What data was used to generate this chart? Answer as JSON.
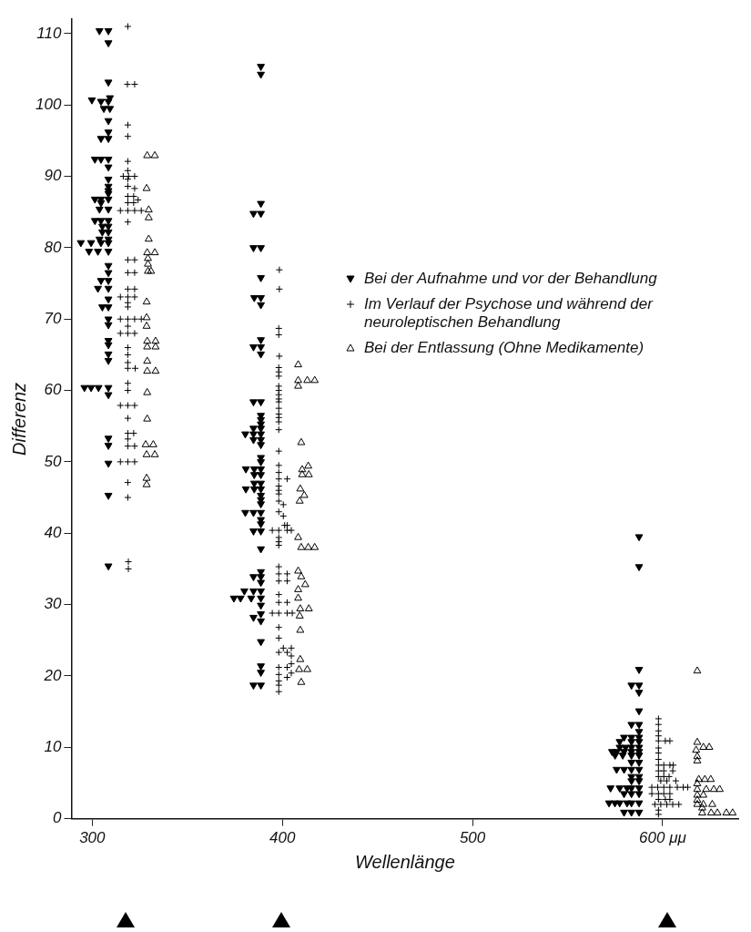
{
  "chart_data": {
    "type": "scatter",
    "xlabel": "Wellenlänge",
    "ylabel": "Differenz",
    "xlim": [
      289,
      640
    ],
    "xticks": [
      300,
      400,
      500,
      {
        "value": 600,
        "label": "600 μμ"
      }
    ],
    "ylim": [
      0,
      112
    ],
    "yticks": [
      0,
      10,
      20,
      30,
      40,
      50,
      60,
      70,
      80,
      90,
      100,
      110
    ],
    "grid": false,
    "legend": "right",
    "series": [
      {
        "name": "Bei der Aufnahme und vor der Behandlung",
        "color": "#000000",
        "marker": "triangle-down",
        "x": [
          303.8,
          308.5,
          308.5,
          308.5,
          299.8,
          304.6,
          308.5,
          309.3,
          306.1,
          309.3,
          308.5,
          308.5,
          304.6,
          308.5,
          301.4,
          304.6,
          308.5,
          308.5,
          308.5,
          308.5,
          308.5,
          308.5,
          301.4,
          304.6,
          308.5,
          304.6,
          303.8,
          308.5,
          301.4,
          304.6,
          308.5,
          305.3,
          308.5,
          305.3,
          308.5,
          303.8,
          308.5,
          294,
          299.4,
          304.6,
          308.5,
          298.3,
          303,
          308.5,
          308.5,
          308.5,
          304.6,
          308.5,
          303,
          308.5,
          308.5,
          305.3,
          308.5,
          308.5,
          308.5,
          308.5,
          308.5,
          308.5,
          308.5,
          295.9,
          299.4,
          303.3,
          308.5,
          308.5,
          308.5,
          308.5,
          308.5,
          308.5,
          308.5,
          388.7,
          388.7,
          388.7,
          384.8,
          388.7,
          384.8,
          388.7,
          388.7,
          385.2,
          388.7,
          388.7,
          388.7,
          384.8,
          388.7,
          388.7,
          384.8,
          388.7,
          388.7,
          388.7,
          388.7,
          384.8,
          388.7,
          380.5,
          384.8,
          388.7,
          384.8,
          388.7,
          388.7,
          388.7,
          388.7,
          380.8,
          385.2,
          388.7,
          385.2,
          388.7,
          385.2,
          388.7,
          380.8,
          385.2,
          388.7,
          388.7,
          388.7,
          388.7,
          380.5,
          384.8,
          388.7,
          388.7,
          388.7,
          384.8,
          388.7,
          388.7,
          388.7,
          384.8,
          388.7,
          388.7,
          380,
          384.8,
          388.7,
          374.5,
          378,
          383.6,
          388.7,
          388.7,
          388.7,
          384.8,
          388.7,
          388.7,
          388.7,
          388.7,
          384.8,
          388.7,
          587.6,
          587.6,
          587.6,
          583.6,
          587.6,
          587.6,
          587.6,
          583.6,
          587.6,
          587.6,
          579.7,
          583.6,
          587.6,
          577.4,
          583.6,
          587.6,
          577.4,
          580.5,
          583.6,
          587.6,
          573.4,
          575.8,
          579.7,
          583.6,
          587.6,
          575,
          579,
          583.6,
          587.6,
          583.6,
          587.6,
          575.8,
          579.7,
          583.6,
          587.6,
          583.6,
          587.6,
          583.6,
          587.6,
          572.6,
          577.4,
          581.3,
          583.6,
          587.6,
          579.7,
          583.6,
          587.6,
          571.8,
          574.9,
          577.4,
          581.3,
          583.6,
          587.6,
          579.7,
          583.6,
          587.6
        ],
        "values": [
          110.4,
          110.4,
          108.7,
          103.2,
          100.7,
          100.5,
          100.5,
          101,
          99.5,
          99.5,
          97.8,
          96.2,
          95.3,
          95.3,
          92.4,
          92.4,
          92.4,
          91.3,
          89.6,
          88.6,
          88,
          87.6,
          86.8,
          86.8,
          86.8,
          86.3,
          85.4,
          85.4,
          83.8,
          83.8,
          83.8,
          83,
          83,
          82.2,
          82.2,
          81.2,
          81.2,
          80.7,
          80.7,
          80.7,
          80.7,
          79.5,
          79.5,
          79.5,
          77.5,
          76.5,
          75.4,
          75.4,
          74.3,
          74.3,
          72.8,
          71.7,
          71.7,
          70,
          69.2,
          67,
          66.4,
          65.1,
          64.2,
          60.4,
          60.4,
          60.4,
          60.4,
          59.4,
          53.3,
          52.3,
          49.8,
          45.3,
          35.4,
          105.4,
          104.3,
          86.2,
          84.8,
          84.8,
          80,
          80,
          75.8,
          73,
          73,
          72,
          67.1,
          66.1,
          66.1,
          65.1,
          58.4,
          58.4,
          56.5,
          55.9,
          55.3,
          54.7,
          54.7,
          53.9,
          53.9,
          53.9,
          53.1,
          53.1,
          52.4,
          50.6,
          50,
          49,
          49,
          49,
          48.2,
          48.2,
          47,
          47,
          46.2,
          46.2,
          46.2,
          45.3,
          44.7,
          44.1,
          42.9,
          42.9,
          42.9,
          41.9,
          41.3,
          40.3,
          40.3,
          37.8,
          34.6,
          33.9,
          33.9,
          33.1,
          31.9,
          31.9,
          31.9,
          30.9,
          30.9,
          30.9,
          30.9,
          29.9,
          28.7,
          28.2,
          27.7,
          24.8,
          21.4,
          20.5,
          18.7,
          18.7,
          39.5,
          35.3,
          20.9,
          18.7,
          18.7,
          17.7,
          15.1,
          13.2,
          13.2,
          12.2,
          11.4,
          11.4,
          11.4,
          10.8,
          10.8,
          10.8,
          10,
          10,
          10,
          10,
          9.4,
          9.4,
          9.4,
          9.4,
          9.4,
          8.9,
          8.9,
          8.9,
          8.9,
          7.9,
          7.9,
          6.9,
          6.9,
          6.9,
          6.9,
          5.9,
          5.9,
          5.3,
          5.3,
          4.3,
          4.3,
          4.3,
          4.3,
          4.3,
          3.5,
          3.5,
          3.5,
          2.2,
          2.2,
          2.2,
          2.2,
          2.2,
          2.2,
          0.9,
          0.9,
          0.9
        ]
      },
      {
        "name": "Im Verlauf der Psychose und während der neuroleptischen Behandlung",
        "color": "#000000",
        "marker": "cross",
        "x": [
          318.7,
          318.5,
          322.3,
          318.7,
          318.7,
          318.7,
          318.7,
          316.3,
          319.1,
          322.3,
          318.7,
          318.7,
          322.3,
          318.7,
          321.8,
          324.1,
          318.7,
          321.8,
          314.8,
          318.7,
          322.3,
          325.8,
          318.7,
          318.7,
          322.3,
          318.7,
          322.3,
          318.7,
          322.3,
          314.8,
          318.7,
          322.3,
          318.7,
          318.7,
          314.8,
          318.7,
          322.3,
          325.8,
          318.7,
          314.8,
          318.7,
          322.3,
          318.7,
          318.7,
          318.7,
          318.7,
          322.6,
          318.7,
          318.7,
          314.8,
          318.7,
          322.3,
          318.7,
          318.7,
          321.8,
          318.7,
          318.7,
          322.3,
          314.8,
          318.7,
          322.3,
          318.7,
          318.7,
          319,
          319,
          398.4,
          398.4,
          398.1,
          398.1,
          398.4,
          398.1,
          398.1,
          398.1,
          398.1,
          398.1,
          398.1,
          398.1,
          398.1,
          398.1,
          398.1,
          398.1,
          398.1,
          398.1,
          398.1,
          398.1,
          398.1,
          398.1,
          402.5,
          398.1,
          398.1,
          398.1,
          398.1,
          400.5,
          398.1,
          400.5,
          401.2,
          402.5,
          394.7,
          398.1,
          402.5,
          404.7,
          398.1,
          398.1,
          398.1,
          398.1,
          398.1,
          402.5,
          398.1,
          402.5,
          398.1,
          398.1,
          402.5,
          394.7,
          398.1,
          402.5,
          405.2,
          398.1,
          398.1,
          400.5,
          404.7,
          398.1,
          402.5,
          404.7,
          404.7,
          398.1,
          402.5,
          404.7,
          398.1,
          402.5,
          398.1,
          398.1,
          398.1,
          597.8,
          597.8,
          597.8,
          597.8,
          597.8,
          601.4,
          603.8,
          597.8,
          597.8,
          597.8,
          597.8,
          600.6,
          603.8,
          605.6,
          597.8,
          600.6,
          605.3,
          597.8,
          600.6,
          603.4,
          599,
          602.2,
          606.9,
          594.3,
          597.4,
          600.6,
          603.8,
          607.7,
          610.8,
          613.2,
          594.3,
          597.8,
          600.6,
          603.8,
          597.8,
          601.4,
          603.8,
          595.9,
          599,
          602.2,
          605.3,
          608.5,
          597.8,
          597.8
        ],
        "values": [
          111,
          102.9,
          102.9,
          97.2,
          95.6,
          92.1,
          90.8,
          90,
          90,
          90,
          89.6,
          88.6,
          88.3,
          87.2,
          87.2,
          86.7,
          86.3,
          86.3,
          85.2,
          85.2,
          85.2,
          85.2,
          83.6,
          78.3,
          78.3,
          76.5,
          76.5,
          74.2,
          74.2,
          73.1,
          73.1,
          73.1,
          72.3,
          71.7,
          70,
          70,
          70,
          70,
          69,
          68,
          68,
          68,
          66,
          65,
          63.9,
          63.1,
          63.1,
          61,
          60,
          57.9,
          57.9,
          57.9,
          56.1,
          54,
          54,
          53.2,
          52.2,
          52.2,
          50,
          50,
          50,
          47.1,
          45,
          36,
          35,
          76.9,
          74.2,
          68.7,
          67.8,
          64.8,
          63.2,
          62.6,
          62,
          60.6,
          60,
          59.4,
          58.8,
          58.4,
          57.5,
          56.7,
          56.2,
          55.6,
          54.5,
          51.5,
          49.5,
          48.5,
          47.6,
          47.6,
          46.6,
          46,
          45.5,
          44.5,
          44,
          43,
          42.4,
          41.1,
          41.1,
          40.4,
          40.4,
          40.4,
          40.4,
          39.4,
          38.8,
          38.3,
          35.3,
          34.3,
          34.3,
          33.3,
          33.3,
          31.4,
          30.3,
          30.3,
          28.8,
          28.8,
          28.8,
          28.8,
          26.8,
          25.3,
          23.9,
          23.9,
          23.3,
          23.3,
          22.8,
          21.7,
          21.2,
          21.2,
          20.4,
          20.2,
          19.8,
          19.3,
          18.7,
          17.8,
          14,
          13.2,
          12.3,
          11.6,
          10.9,
          10.9,
          10.9,
          9.9,
          9.2,
          8.3,
          7.5,
          7.5,
          7.5,
          7.5,
          6.7,
          6.7,
          6.7,
          5.9,
          5.9,
          5.9,
          5.3,
          5.3,
          5.3,
          4.4,
          4.4,
          4.4,
          4.4,
          4.4,
          4.4,
          4.4,
          3.5,
          3.5,
          3.5,
          3.5,
          2.7,
          2.7,
          2.7,
          2,
          2,
          2,
          2,
          2,
          1.2,
          0.6
        ]
      },
      {
        "name": "Bei der Entlassung (Ohne Medikamente)",
        "color": "#000000",
        "marker": "triangle",
        "x": [
          328.9,
          332.9,
          328.6,
          329.7,
          329.7,
          329.7,
          328.9,
          332.9,
          329.3,
          329.3,
          329.3,
          330.9,
          328.6,
          328.6,
          328.6,
          328.9,
          333.3,
          328.9,
          333.3,
          328.9,
          328.9,
          333.3,
          328.9,
          328.9,
          328.1,
          332.1,
          328.6,
          332.9,
          328.6,
          328.6,
          408.3,
          408.3,
          413.1,
          417,
          408.3,
          409.9,
          413.6,
          410.4,
          410.4,
          413.9,
          409.4,
          411.5,
          409.1,
          408.3,
          409.9,
          413.6,
          417,
          408.3,
          409.9,
          412,
          408.3,
          408.3,
          409.4,
          413.9,
          409.1,
          409.4,
          409.4,
          408.8,
          413.1,
          409.9,
          618.2,
          618.2,
          621.4,
          624.5,
          617.6,
          618.2,
          618.2,
          619,
          622.2,
          625.3,
          618.2,
          618.2,
          622.9,
          626.9,
          630,
          618.2,
          621.4,
          618.2,
          618.2,
          621.4,
          626.1,
          620.8,
          620.8,
          625.5,
          628.8,
          633.5,
          636.8
        ],
        "values": [
          92.9,
          92.9,
          88.3,
          85.3,
          84.2,
          81.2,
          79.3,
          79.3,
          78.5,
          77.7,
          76.7,
          76.7,
          72.4,
          70.2,
          69,
          66.9,
          66.9,
          66.1,
          66.1,
          64.1,
          62.7,
          62.7,
          59.7,
          56,
          52.4,
          52.4,
          51,
          51,
          47.7,
          46.8,
          63.6,
          61.4,
          61.4,
          61.4,
          60.6,
          52.7,
          49.4,
          48.9,
          48.2,
          48.2,
          46.2,
          45.3,
          44.5,
          39.4,
          38,
          38,
          38,
          34.7,
          33.9,
          32.8,
          32.1,
          30.9,
          29.4,
          29.4,
          28.4,
          26.4,
          22.3,
          20.9,
          20.9,
          19.1,
          20.7,
          10.7,
          10,
          10,
          9.6,
          8.7,
          8.1,
          5.5,
          5.5,
          5.5,
          4.9,
          4.1,
          4.1,
          4.1,
          4.1,
          3.3,
          3.3,
          2.6,
          2,
          2,
          2,
          1.5,
          0.8,
          0.8,
          0.8,
          0.8,
          0.8
        ]
      }
    ]
  }
}
